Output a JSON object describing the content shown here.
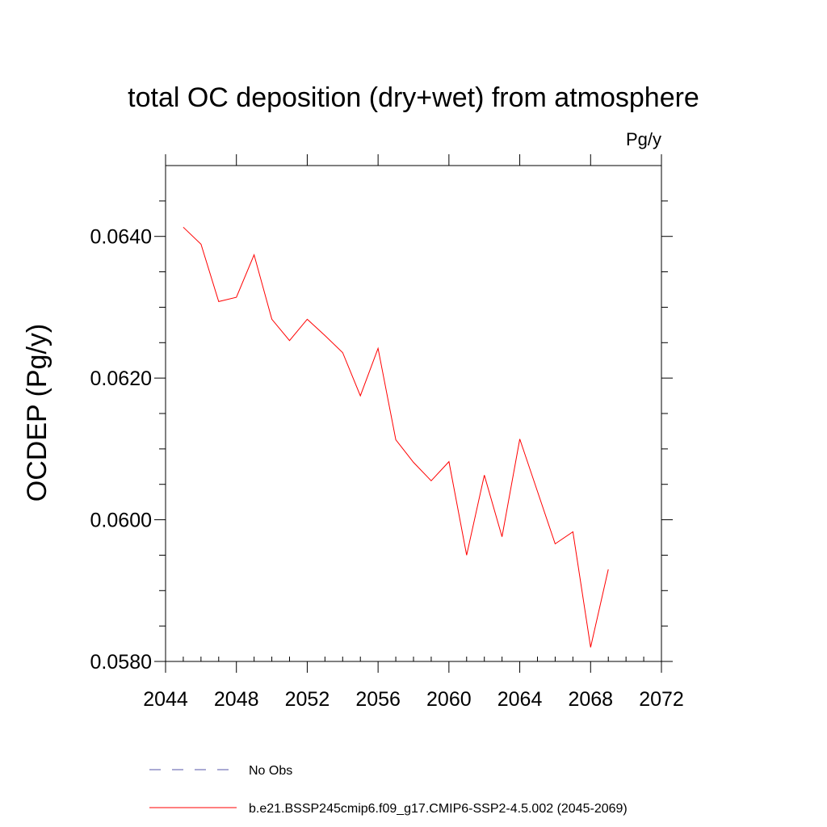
{
  "chart_data": {
    "type": "line",
    "title": "total OC deposition (dry+wet) from atmosphere",
    "units": "Pg/y",
    "ylabel": "OCDEP  (Pg/y)",
    "xlabel": "",
    "xlim": [
      2044,
      2072
    ],
    "ylim": [
      0.058,
      0.065
    ],
    "x_ticks": [
      2044,
      2048,
      2052,
      2056,
      2060,
      2064,
      2068,
      2072
    ],
    "x_tick_labels": [
      "2044",
      "2048",
      "2052",
      "2056",
      "2060",
      "2064",
      "2068",
      "2072"
    ],
    "y_ticks": [
      0.058,
      0.06,
      0.062,
      0.064
    ],
    "y_tick_labels": [
      "0.0580",
      "0.0600",
      "0.0620",
      "0.0640"
    ],
    "series": [
      {
        "name": "b.e21.BSSP245cmip6.f09_g17.CMIP6-SSP2-4.5.002 (2045-2069)",
        "color": "#ff0000",
        "x": [
          2045,
          2046,
          2047,
          2048,
          2049,
          2050,
          2051,
          2052,
          2053,
          2054,
          2055,
          2056,
          2057,
          2058,
          2059,
          2060,
          2061,
          2062,
          2063,
          2064,
          2065,
          2066,
          2067,
          2068,
          2069
        ],
        "values": [
          0.06413,
          0.06389,
          0.06308,
          0.06314,
          0.06374,
          0.06283,
          0.06253,
          0.06283,
          0.0626,
          0.06236,
          0.06175,
          0.06242,
          0.06113,
          0.06081,
          0.06055,
          0.06082,
          0.0595,
          0.06063,
          0.05976,
          0.06114,
          0.0604,
          0.05966,
          0.05983,
          0.0582,
          0.0593
        ]
      }
    ],
    "legend": [
      {
        "label": "No Obs",
        "color": "#5555aa",
        "style": "dashed"
      },
      {
        "label": "b.e21.BSSP245cmip6.f09_g17.CMIP6-SSP2-4.5.002 (2045-2069)",
        "color": "#ff0000",
        "style": "solid"
      }
    ]
  }
}
